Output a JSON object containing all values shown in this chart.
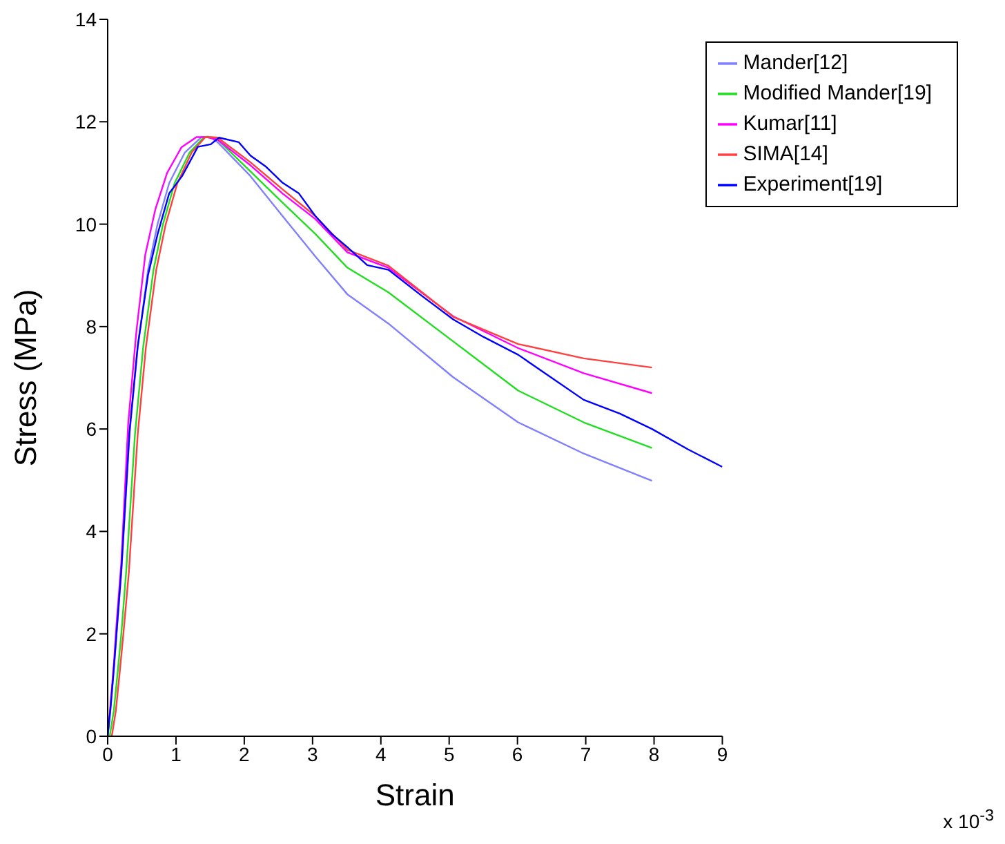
{
  "chart_data": {
    "type": "line",
    "xlabel": "Strain",
    "ylabel": "Stress (MPa)",
    "annotations": [
      "x 10$^{-3}$"
    ],
    "xlim": [
      0,
      9
    ],
    "xticks": [
      0,
      1,
      2,
      3,
      4,
      5,
      6,
      7,
      8,
      9
    ],
    "ylim": [
      0,
      14
    ],
    "yticks": [
      0,
      2,
      4,
      6,
      8,
      10,
      12,
      14
    ],
    "grid": false,
    "legend": "top right",
    "marker": "none",
    "line_style": "solid",
    "series": [
      {
        "name": "Mander[12]",
        "color": "#8080ff",
        "x": [
          0,
          0.04,
          0.09,
          0.13,
          0.2,
          0.32,
          0.44,
          0.59,
          0.73,
          0.9,
          1.13,
          1.37,
          1.5,
          1.61,
          2.09,
          2.56,
          3.04,
          3.51,
          4.11,
          5.06,
          6.01,
          6.97,
          7.97
        ],
        "values": [
          0,
          0.5,
          1.3,
          2.0,
          3.2,
          5.9,
          7.6,
          9.1,
          10.0,
          10.8,
          11.4,
          11.7,
          11.7,
          11.6,
          10.94,
          10.16,
          9.37,
          8.63,
          8.06,
          7.01,
          6.13,
          5.52,
          4.99
        ]
      },
      {
        "name": "Modified Mander[19]",
        "color": "#22dd22",
        "x": [
          0.03,
          0.09,
          0.15,
          0.2,
          0.27,
          0.4,
          0.52,
          0.67,
          0.81,
          0.98,
          1.2,
          1.41,
          1.47,
          1.61,
          2.09,
          2.56,
          3.04,
          3.51,
          4.11,
          5.06,
          6.01,
          6.97,
          7.97
        ],
        "values": [
          0,
          0.5,
          1.3,
          2.0,
          3.2,
          5.9,
          7.6,
          9.1,
          10.0,
          10.8,
          11.4,
          11.7,
          11.71,
          11.65,
          11.03,
          10.42,
          9.81,
          9.15,
          8.67,
          7.71,
          6.75,
          6.13,
          5.63
        ]
      },
      {
        "name": "Kumar[11]",
        "color": "#ff00ff",
        "x": [
          0,
          0.04,
          0.09,
          0.13,
          0.2,
          0.3,
          0.42,
          0.55,
          0.7,
          0.87,
          1.08,
          1.3,
          1.45,
          1.61,
          2.09,
          2.56,
          3.04,
          3.51,
          4.11,
          5.06,
          6.01,
          6.97,
          7.97
        ],
        "values": [
          0,
          0.6,
          1.4,
          2.2,
          3.4,
          6.1,
          7.9,
          9.4,
          10.3,
          11.0,
          11.5,
          11.7,
          11.7,
          11.65,
          11.15,
          10.6,
          10.1,
          9.45,
          9.15,
          8.2,
          7.58,
          7.09,
          6.7
        ]
      },
      {
        "name": "SIMA[14]",
        "color": "#ff4040",
        "x": [
          0.06,
          0.12,
          0.18,
          0.23,
          0.31,
          0.44,
          0.56,
          0.71,
          0.85,
          1.02,
          1.23,
          1.43,
          1.52,
          1.61,
          2.09,
          2.56,
          3.04,
          3.51,
          4.11,
          5.06,
          6.01,
          6.97,
          7.97
        ],
        "values": [
          0,
          0.5,
          1.3,
          2.0,
          3.2,
          5.9,
          7.6,
          9.1,
          10.0,
          10.8,
          11.4,
          11.7,
          11.7,
          11.69,
          11.21,
          10.68,
          10.16,
          9.5,
          9.19,
          8.19,
          7.66,
          7.38,
          7.2
        ]
      },
      {
        "name": "Experiment[19]",
        "color": "#0000ff",
        "x": [
          0,
          0.04,
          0.09,
          0.13,
          0.2,
          0.32,
          0.44,
          0.59,
          0.73,
          0.9,
          1.09,
          1.32,
          1.51,
          1.63,
          1.92,
          2.09,
          2.32,
          2.56,
          2.8,
          3.04,
          3.28,
          3.51,
          3.8,
          4.11,
          4.6,
          5.06,
          5.5,
          6.01,
          6.5,
          6.97,
          7.5,
          7.97,
          8.5,
          9
        ],
        "values": [
          0,
          0.53,
          1.32,
          2.02,
          3.25,
          5.96,
          7.62,
          9.0,
          9.8,
          10.6,
          10.94,
          11.51,
          11.56,
          11.69,
          11.6,
          11.34,
          11.12,
          10.81,
          10.6,
          10.16,
          9.81,
          9.55,
          9.2,
          9.11,
          8.6,
          8.14,
          7.8,
          7.45,
          7.0,
          6.57,
          6.3,
          6.0,
          5.6,
          5.26
        ]
      }
    ]
  }
}
